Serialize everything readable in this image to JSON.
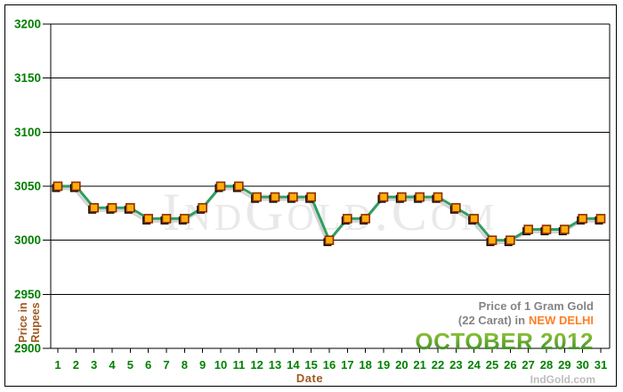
{
  "watermark": {
    "text": "IndGold.Com"
  },
  "branding": {
    "text": "IndGold.com"
  },
  "annotation": {
    "line1": "Price of 1 Gram Gold",
    "line2_prefix": "(22 Carat) in",
    "line2_highlight": "NEW DELHI",
    "line3": "OCTOBER 2012"
  },
  "colors": {
    "axis_label_green": "#008000",
    "axis_title_brown": "#A05A1E",
    "annotation_gray": "#848484",
    "highlight_orange": "#FF7E26",
    "month_green_light": "#9CCB3B",
    "month_green_dark": "#2F8424",
    "line_green": "#2E9E62",
    "line_shadow_gray": "#CFCFCF",
    "marker_fill": "#FFAE0A",
    "marker_border": "#8B2E00",
    "marker_shadow": "#000000",
    "watermark_gray": "#E9E9E9",
    "branding_gray": "#BDBDBD",
    "grid_black": "#000000"
  },
  "chart_data": {
    "type": "line",
    "title": "Price of 1 Gram Gold (22 Carat) in NEW DELHI",
    "subtitle": "OCTOBER 2012",
    "x": [
      1,
      2,
      3,
      4,
      5,
      6,
      7,
      8,
      9,
      10,
      11,
      12,
      13,
      14,
      15,
      16,
      17,
      18,
      19,
      20,
      21,
      22,
      23,
      24,
      25,
      26,
      27,
      28,
      29,
      30,
      31
    ],
    "series": [
      {
        "name": "Gold price per 1 gram (22 carat), Rupees",
        "values": [
          3050,
          3050,
          3030,
          3030,
          3030,
          3020,
          3020,
          3020,
          3030,
          3050,
          3050,
          3040,
          3040,
          3040,
          3040,
          3000,
          3020,
          3020,
          3040,
          3040,
          3040,
          3040,
          3030,
          3020,
          3000,
          3000,
          3010,
          3010,
          3010,
          3020,
          3020
        ]
      }
    ],
    "xlabel": "Date",
    "ylabel": "Price in Rupees",
    "ylim": [
      2900,
      3200
    ],
    "y_ticks": [
      2900,
      2950,
      3000,
      3050,
      3100,
      3150,
      3200
    ],
    "grid": "horizontal-only",
    "legend": "none"
  }
}
